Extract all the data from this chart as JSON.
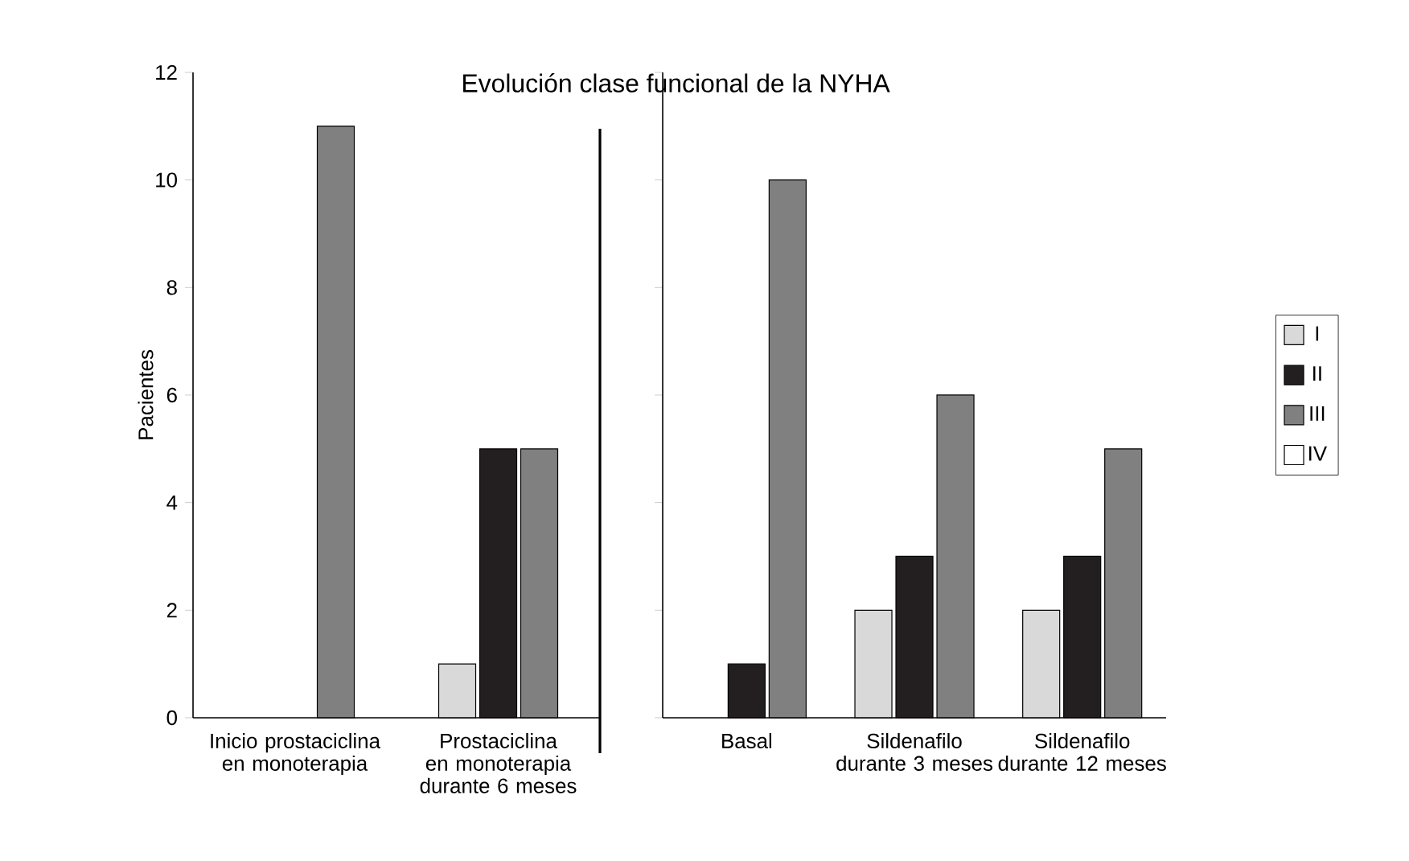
{
  "chart_data": [
    {
      "type": "bar",
      "title": "Evolución clase funcional de la NYHA",
      "ylabel": "Pacientes",
      "categories": [
        "Inicio prostaciclina en monoterapia",
        "Prostaciclina en monoterapia durante 6 meses"
      ],
      "ylim": [
        0,
        12
      ],
      "yticks": [
        0,
        2,
        4,
        6,
        8,
        10,
        12
      ],
      "series": [
        {
          "color": "#d9d9d9",
          "values": [
            null,
            1
          ]
        },
        {
          "color": "#231f20",
          "values": [
            null,
            5
          ]
        },
        {
          "color": "#808080",
          "values": [
            11,
            5
          ]
        },
        {
          "color": "#ffffff",
          "values": [
            null,
            null
          ]
        }
      ]
    },
    {
      "type": "bar",
      "categories": [
        "Basal",
        "Sildenafilo durante 3 meses",
        "Sildenafilo durante 12 meses"
      ],
      "ylim": [
        0,
        12
      ],
      "yticks": [
        0,
        2,
        4,
        6,
        8,
        10,
        12
      ],
      "tick_labels": "x",
      "legend": "right",
      "series": [
        {
          "name": "I",
          "color": "#d9d9d9",
          "values": [
            null,
            2,
            2
          ]
        },
        {
          "name": "II",
          "color": "#231f20",
          "values": [
            1,
            3,
            3
          ]
        },
        {
          "name": "III",
          "color": "#808080",
          "values": [
            10,
            6,
            5
          ]
        },
        {
          "name": "IV",
          "color": "#ffffff",
          "values": [
            null,
            null,
            null
          ]
        }
      ]
    }
  ]
}
